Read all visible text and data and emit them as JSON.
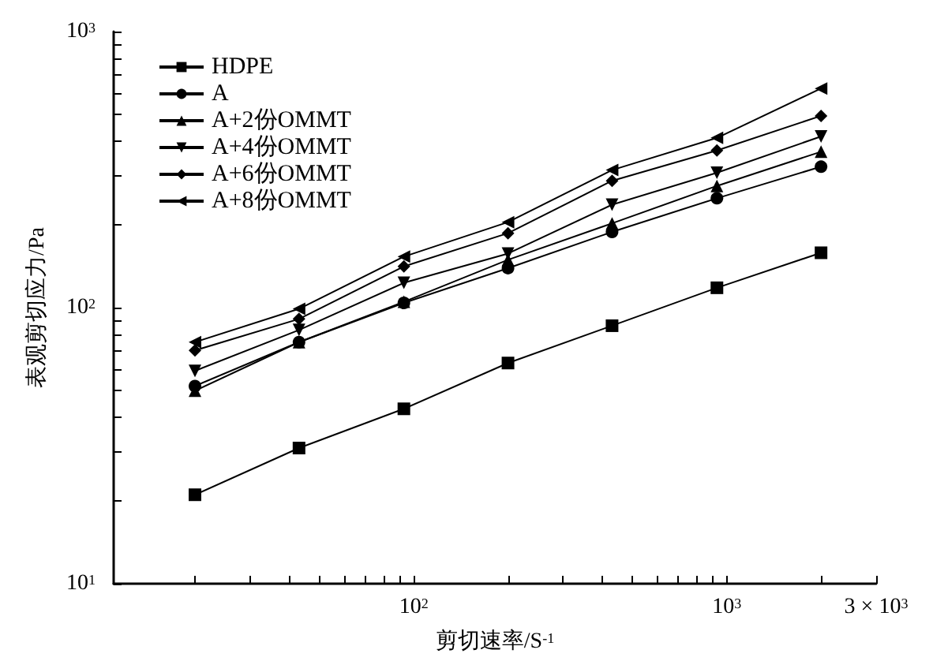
{
  "chart_data": {
    "type": "line",
    "xlabel": "剪切速率/S$^{-1}$",
    "ylabel": "表观剪切应力/Pa",
    "log": "xy",
    "legend": "top left",
    "grid": false,
    "line_style": "solid",
    "x": [
      20,
      43,
      93,
      200,
      430,
      930,
      2000
    ],
    "xlim": [
      11,
      3000
    ],
    "ylim": [
      10,
      1000
    ],
    "xticks": [
      {
        "value": 20,
        "label": null
      },
      {
        "value": 30,
        "label": null
      },
      {
        "value": 40,
        "label": null
      },
      {
        "value": 50,
        "label": null
      },
      {
        "value": 60,
        "label": null
      },
      {
        "value": 70,
        "label": null
      },
      {
        "value": 80,
        "label": null
      },
      {
        "value": 90,
        "label": null
      },
      {
        "value": 100,
        "label": "10$^{2}$"
      },
      {
        "value": 200,
        "label": null
      },
      {
        "value": 300,
        "label": null
      },
      {
        "value": 400,
        "label": null
      },
      {
        "value": 500,
        "label": null
      },
      {
        "value": 600,
        "label": null
      },
      {
        "value": 700,
        "label": null
      },
      {
        "value": 800,
        "label": null
      },
      {
        "value": 900,
        "label": null
      },
      {
        "value": 1000,
        "label": "10$^{3}$"
      },
      {
        "value": 2000,
        "label": null
      },
      {
        "value": 3000,
        "label": "3 × 10$^{3}$"
      }
    ],
    "yticks": [
      {
        "value": 10,
        "label": "10$^{1}$"
      },
      {
        "value": 20,
        "label": null
      },
      {
        "value": 30,
        "label": null
      },
      {
        "value": 40,
        "label": null
      },
      {
        "value": 50,
        "label": null
      },
      {
        "value": 60,
        "label": null
      },
      {
        "value": 70,
        "label": null
      },
      {
        "value": 80,
        "label": null
      },
      {
        "value": 90,
        "label": null
      },
      {
        "value": 100,
        "label": "10$^{2}$"
      },
      {
        "value": 200,
        "label": null
      },
      {
        "value": 300,
        "label": null
      },
      {
        "value": 400,
        "label": null
      },
      {
        "value": 500,
        "label": null
      },
      {
        "value": 600,
        "label": null
      },
      {
        "value": 700,
        "label": null
      },
      {
        "value": 800,
        "label": null
      },
      {
        "value": 900,
        "label": null
      },
      {
        "value": 1000,
        "label": "10$^{3}$"
      }
    ],
    "series": [
      {
        "name": "HDPE",
        "color": "#000000",
        "marker": "square",
        "values": [
          21,
          31,
          43,
          63,
          86,
          118,
          158
        ]
      },
      {
        "name": "A",
        "color": "#000000",
        "marker": "circle",
        "values": [
          52,
          75,
          104,
          139,
          188,
          249,
          324
        ]
      },
      {
        "name": "A+2份OMMT",
        "color": "#000000",
        "marker": "triangle",
        "values": [
          50,
          75,
          105,
          149,
          202,
          276,
          367
        ]
      },
      {
        "name": "A+4份OMMT",
        "color": "#000000",
        "marker": "triangle-down",
        "values": [
          59,
          83,
          123,
          157,
          236,
          308,
          417
        ]
      },
      {
        "name": "A+6份OMMT",
        "color": "#000000",
        "marker": "diamond",
        "values": [
          70,
          91,
          141,
          186,
          288,
          371,
          495
        ]
      },
      {
        "name": "A+8份OMMT",
        "color": "#000000",
        "marker": "triangle-left",
        "values": [
          75,
          99,
          153,
          204,
          315,
          412,
          622
        ]
      }
    ]
  }
}
